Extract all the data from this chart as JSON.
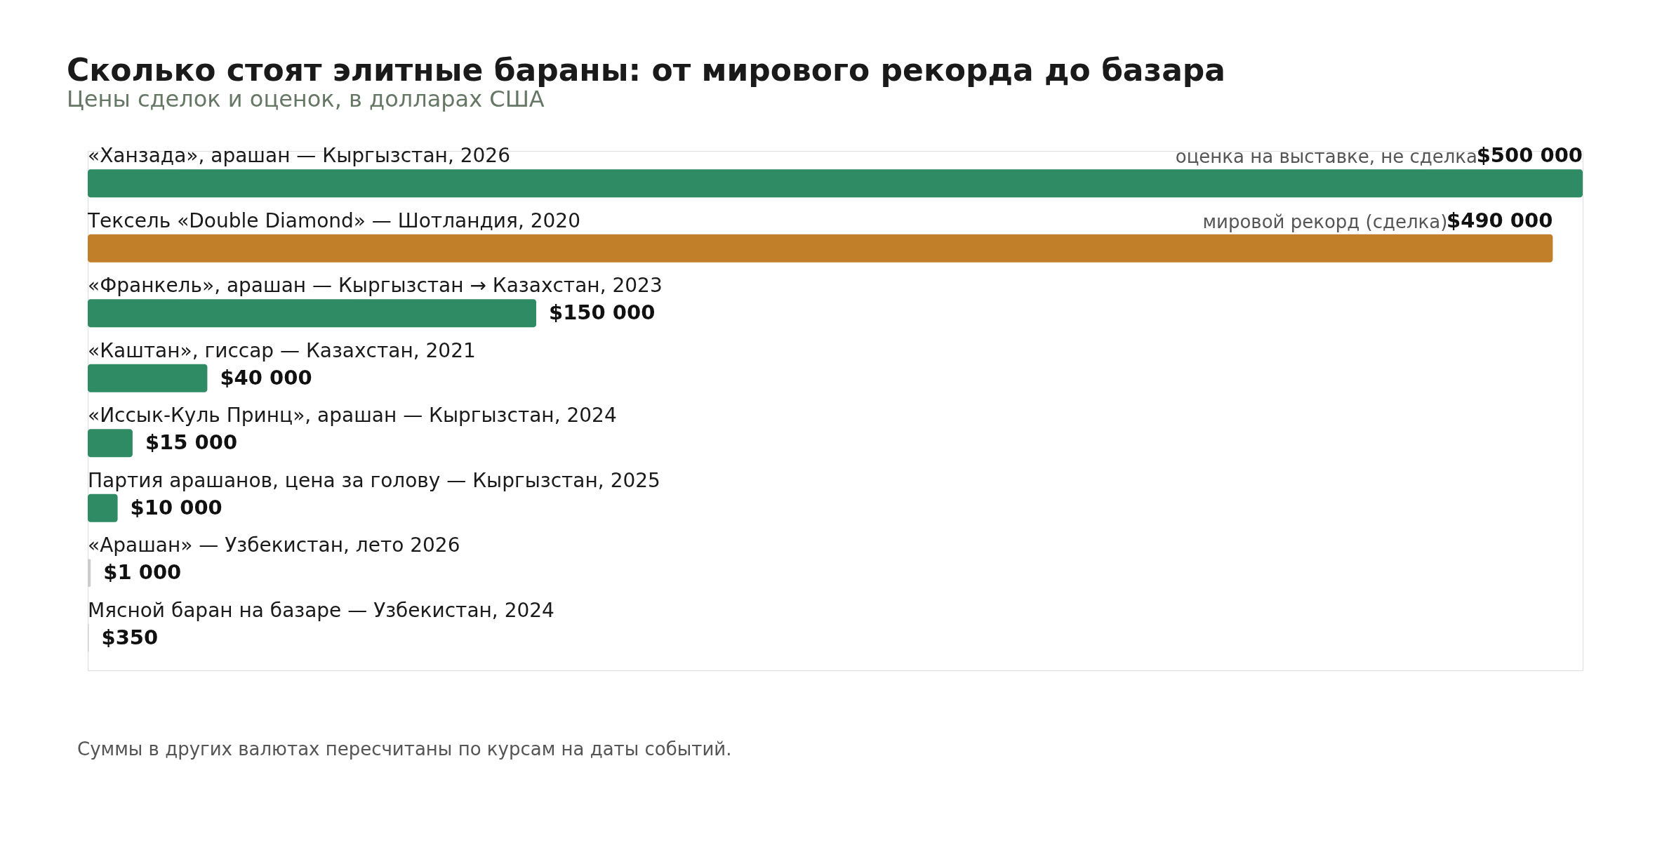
{
  "chart_data": {
    "type": "bar",
    "orientation": "horizontal",
    "title": "Сколько стоят элитные бараны: от мирового рекорда до базара",
    "subtitle": "Цены сделок и оценок, в долларах США",
    "categories": [
      "«Ханзада», арашан — Кыргызстан, 2026",
      "Тексель «Double Diamond» — Шотландия, 2020",
      "«Франкель», арашан — Кыргызстан → Казахстан, 2023",
      "«Каштан», гиссар — Казахстан, 2021",
      "«Иссык-Куль Принц», арашан — Кыргызстан, 2024",
      "Партия арашанов, цена за голову — Кыргызстан, 2025",
      "«Арашан» — Узбекистан, лето 2026",
      "Мясной баран на базаре — Узбекистан, 2024"
    ],
    "values": [
      500000,
      490000,
      150000,
      40000,
      15000,
      10000,
      1000,
      350
    ],
    "colors": [
      "#2e8b63",
      "#c17f2a",
      "#2e8b63",
      "#2e8b63",
      "#2e8b63",
      "#2e8b63",
      "#cccccc",
      "#cccccc"
    ],
    "value_labels": [
      "$500 000",
      "$490 000",
      "$150 000",
      "$40 000",
      "$15 000",
      "$10 000",
      "$1 000",
      "$350"
    ],
    "xlim": [
      0,
      500000
    ],
    "tick_labels": false,
    "annotations": [
      "оценка на выставке, не сделка",
      "мировой рекорд (сделка)",
      "Суммы в других валютах пересчитаны по курсам на даты событий."
    ]
  }
}
